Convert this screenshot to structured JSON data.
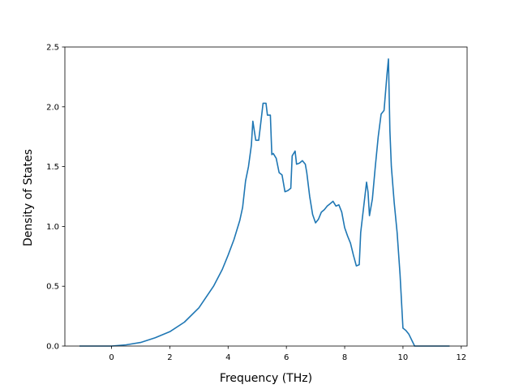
{
  "chart_data": {
    "type": "line",
    "title": "",
    "xlabel": "Frequency (THz)",
    "ylabel": "Density of States",
    "xlim": [
      -1.6,
      12.2
    ],
    "ylim": [
      0,
      2.5
    ],
    "grid": false,
    "legend": "none",
    "x_ticks": [
      0,
      2,
      4,
      6,
      8,
      10,
      12
    ],
    "y_ticks": [
      0.0,
      0.5,
      1.0,
      1.5,
      2.0,
      2.5
    ],
    "x_tick_labels": [
      "0",
      "2",
      "4",
      "6",
      "8",
      "10",
      "12"
    ],
    "y_tick_labels": [
      "0.0",
      "0.5",
      "1.0",
      "1.5",
      "2.0",
      "2.5"
    ],
    "series": [
      {
        "color": "#1f77b4",
        "x": [
          -1.1,
          0.0,
          0.5,
          1.0,
          1.5,
          2.0,
          2.5,
          3.0,
          3.5,
          3.8,
          4.0,
          4.2,
          4.4,
          4.5,
          4.6,
          4.7,
          4.8,
          4.85,
          4.95,
          5.05,
          5.1,
          5.2,
          5.3,
          5.35,
          5.45,
          5.5,
          5.55,
          5.65,
          5.75,
          5.85,
          5.95,
          6.05,
          6.15,
          6.2,
          6.3,
          6.35,
          6.45,
          6.55,
          6.65,
          6.7,
          6.8,
          6.9,
          7.0,
          7.1,
          7.2,
          7.3,
          7.4,
          7.5,
          7.6,
          7.7,
          7.8,
          7.9,
          8.0,
          8.1,
          8.2,
          8.3,
          8.4,
          8.5,
          8.55,
          8.65,
          8.75,
          8.8,
          8.85,
          8.95,
          9.05,
          9.15,
          9.25,
          9.35,
          9.45,
          9.5,
          9.55,
          9.6,
          9.7,
          9.8,
          9.9,
          10.0,
          10.1,
          10.2,
          10.3,
          10.4,
          10.55,
          10.7,
          11.6
        ],
        "values": [
          0.0,
          0.0,
          0.01,
          0.03,
          0.07,
          0.12,
          0.2,
          0.32,
          0.5,
          0.64,
          0.76,
          0.89,
          1.05,
          1.16,
          1.38,
          1.5,
          1.68,
          1.88,
          1.72,
          1.72,
          1.82,
          2.03,
          2.03,
          1.93,
          1.93,
          1.6,
          1.61,
          1.57,
          1.45,
          1.43,
          1.29,
          1.3,
          1.32,
          1.59,
          1.63,
          1.52,
          1.53,
          1.55,
          1.52,
          1.45,
          1.25,
          1.1,
          1.03,
          1.06,
          1.12,
          1.14,
          1.17,
          1.19,
          1.21,
          1.17,
          1.18,
          1.12,
          0.99,
          0.92,
          0.86,
          0.76,
          0.67,
          0.68,
          0.95,
          1.16,
          1.37,
          1.29,
          1.09,
          1.23,
          1.5,
          1.75,
          1.94,
          1.97,
          2.27,
          2.4,
          1.8,
          1.5,
          1.2,
          0.95,
          0.6,
          0.15,
          0.13,
          0.1,
          0.05,
          0.0,
          0.0,
          0.0,
          0.0
        ]
      }
    ]
  }
}
